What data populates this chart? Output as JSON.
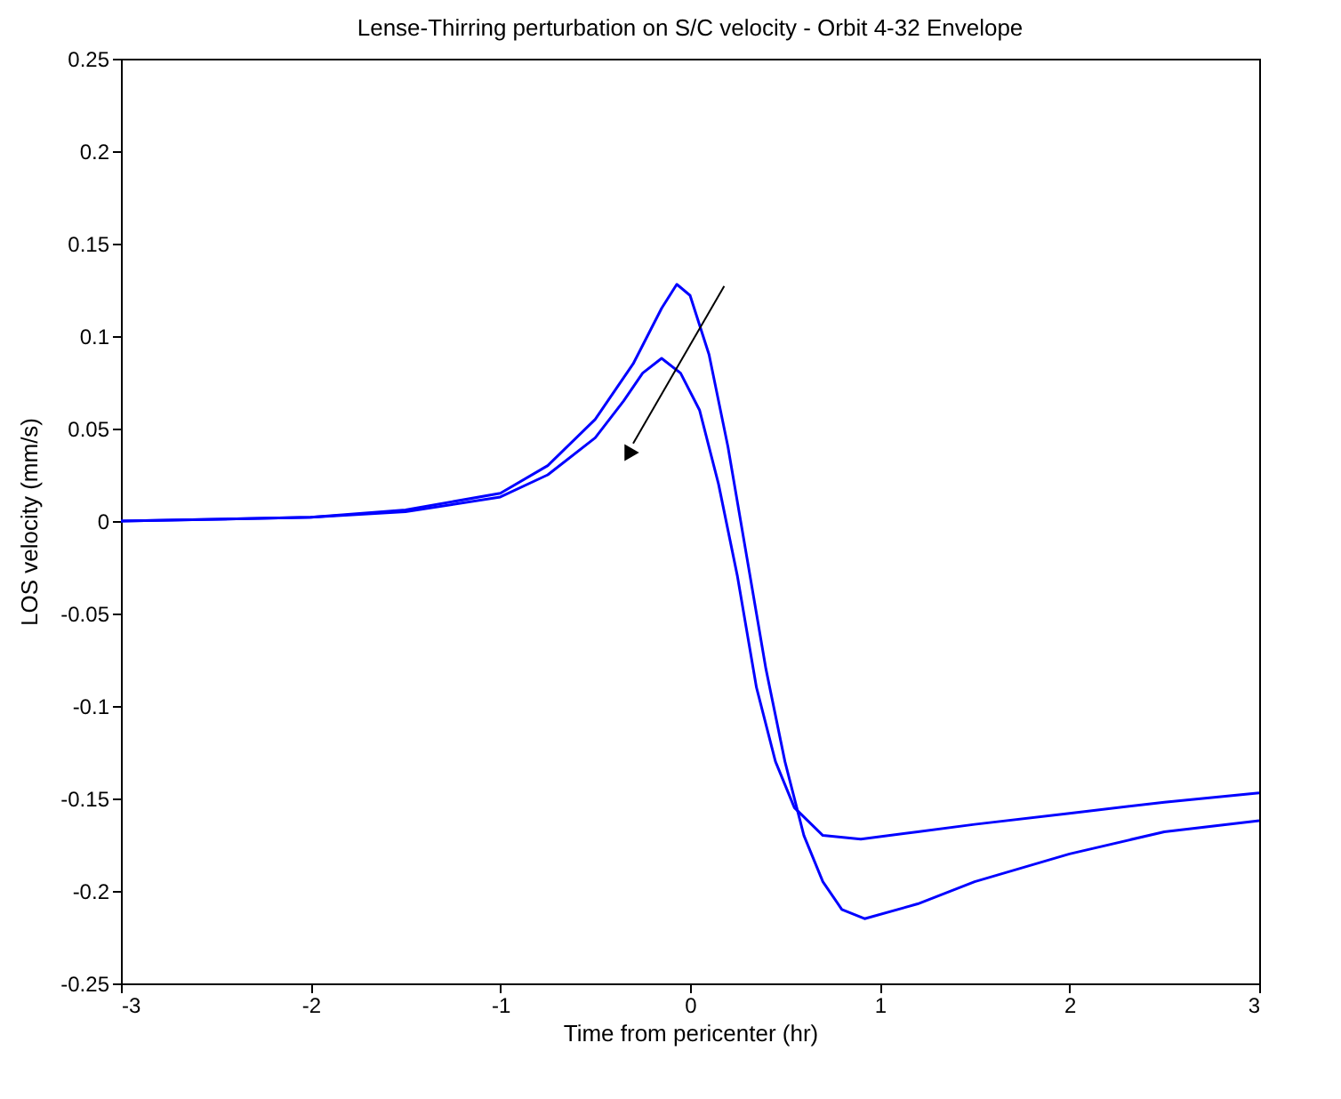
{
  "chart_data": {
    "type": "line",
    "title": "Lense-Thirring perturbation on S/C velocity - Orbit 4-32 Envelope",
    "xlabel": "Time from pericenter (hr)",
    "ylabel": "LOS velocity (mm/s)",
    "xlim": [
      -3,
      3
    ],
    "xticks": [
      -3,
      -2,
      -1,
      0,
      1,
      2,
      3
    ],
    "ylim": [
      -0.25,
      0.25
    ],
    "yticks": [
      -0.25,
      -0.2,
      -0.15,
      -0.1,
      -0.05,
      0,
      0.05,
      0.1,
      0.15,
      0.2,
      0.25
    ],
    "grid": false,
    "legend": false,
    "series": [
      {
        "color": "#0000ff",
        "x": [
          -3,
          -2,
          -1.5,
          -1,
          -0.75,
          -0.5,
          -0.3,
          -0.15,
          -0.07,
          0,
          0.1,
          0.2,
          0.3,
          0.4,
          0.5,
          0.6,
          0.7,
          0.8,
          0.92,
          1.2,
          1.5,
          2,
          2.5,
          3
        ],
        "values": [
          0,
          0.002,
          0.006,
          0.015,
          0.03,
          0.055,
          0.085,
          0.115,
          0.128,
          0.122,
          0.09,
          0.04,
          -0.02,
          -0.08,
          -0.13,
          -0.17,
          -0.195,
          -0.21,
          -0.215,
          -0.207,
          -0.195,
          -0.18,
          -0.168,
          -0.162
        ]
      },
      {
        "color": "#0000ff",
        "x": [
          -3,
          -2,
          -1.5,
          -1,
          -0.75,
          -0.5,
          -0.35,
          -0.25,
          -0.15,
          -0.05,
          0.05,
          0.15,
          0.25,
          0.35,
          0.45,
          0.55,
          0.7,
          0.9,
          1.2,
          1.5,
          2,
          2.5,
          3
        ],
        "values": [
          0,
          0.002,
          0.005,
          0.013,
          0.025,
          0.045,
          0.065,
          0.08,
          0.088,
          0.08,
          0.06,
          0.02,
          -0.03,
          -0.09,
          -0.13,
          -0.155,
          -0.17,
          -0.172,
          -0.168,
          -0.164,
          -0.158,
          -0.152,
          -0.147
        ]
      }
    ]
  }
}
